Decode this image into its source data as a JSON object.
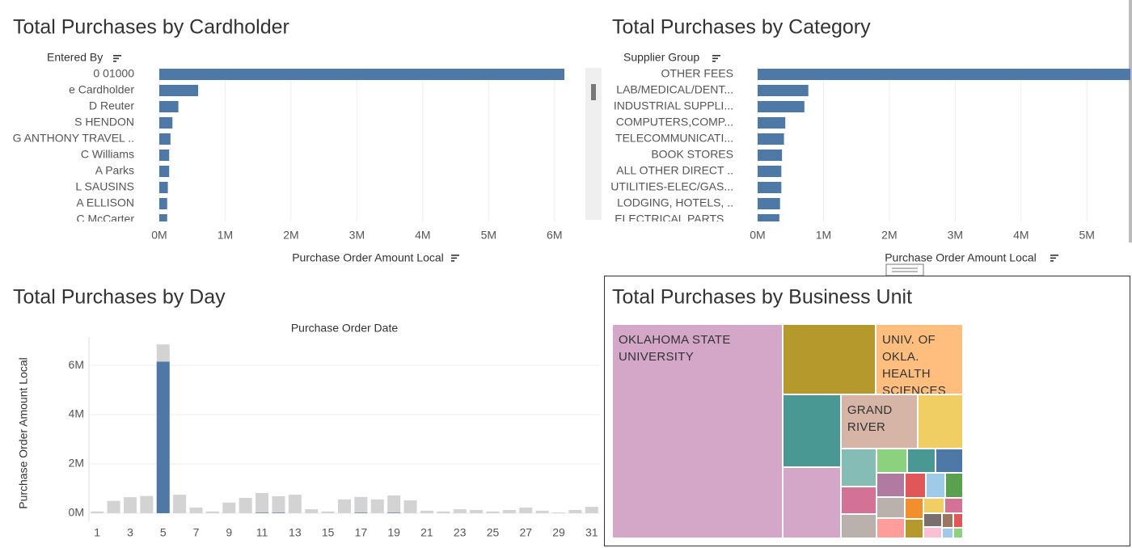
{
  "chart_data": [
    {
      "type": "bar",
      "orientation": "horizontal",
      "title": "Total Purchases by Cardholder",
      "category_header": "Entered By",
      "x_label": "Purchase Order Amount Local",
      "categories": [
        "0 01000",
        "e Cardholder",
        "D Reuter",
        "S HENDON",
        "G ANTHONY TRAVEL ..",
        "C Williams",
        "A Parks",
        "L SAUSINS",
        "A ELLISON",
        "C McCarter"
      ],
      "values": [
        6150000,
        590000,
        290000,
        200000,
        170000,
        150000,
        150000,
        130000,
        120000,
        120000
      ],
      "color": "#4e79a7",
      "xlim": [
        0,
        6420000
      ],
      "xticks": [
        {
          "value": 0,
          "label": "0M"
        },
        {
          "value": 1000000,
          "label": "1M"
        },
        {
          "value": 2000000,
          "label": "2M"
        },
        {
          "value": 3000000,
          "label": "3M"
        },
        {
          "value": 4000000,
          "label": "4M"
        },
        {
          "value": 5000000,
          "label": "5M"
        },
        {
          "value": 6000000,
          "label": "6M"
        }
      ],
      "grid": true
    },
    {
      "type": "bar",
      "orientation": "horizontal",
      "title": "Total Purchases by Category",
      "category_header": "Supplier Group",
      "x_label": "Purchase Order Amount Local",
      "categories": [
        "OTHER FEES",
        "LAB/MEDICAL/DENT...",
        "INDUSTRIAL SUPPLI...",
        "COMPUTERS,COMP...",
        "TELECOMMUNICATI...",
        "BOOK STORES",
        "ALL OTHER DIRECT ..",
        "UTILITIES-ELEC/GAS...",
        "LODGING, HOTELS, ..",
        "ELECTRICAL PARTS..."
      ],
      "values": [
        5660000,
        770000,
        710000,
        420000,
        400000,
        370000,
        360000,
        360000,
        340000,
        330000
      ],
      "color": "#4e79a7",
      "xlim": [
        0,
        5660000
      ],
      "xticks": [
        {
          "value": 0,
          "label": "0M"
        },
        {
          "value": 1000000,
          "label": "1M"
        },
        {
          "value": 2000000,
          "label": "2M"
        },
        {
          "value": 3000000,
          "label": "3M"
        },
        {
          "value": 4000000,
          "label": "4M"
        },
        {
          "value": 5000000,
          "label": "5M"
        }
      ],
      "grid": true
    },
    {
      "type": "bar",
      "orientation": "vertical",
      "title": "Total Purchases by Day",
      "x_header": "Purchase Order Date",
      "y_label": "Purchase Order Amount Local",
      "categories": [
        "1",
        null,
        "3",
        null,
        "5",
        null,
        "7",
        null,
        "9",
        null,
        "11",
        null,
        "13",
        null,
        "15",
        null,
        "17",
        null,
        "19",
        null,
        "21",
        null,
        "23",
        null,
        "25",
        null,
        "27",
        null,
        "29",
        null,
        "31"
      ],
      "series": [
        {
          "color": "#d3d3d3",
          "values": [
            70000,
            500000,
            650000,
            700000,
            6850000,
            750000,
            230000,
            70000,
            430000,
            620000,
            820000,
            690000,
            750000,
            160000,
            70000,
            560000,
            660000,
            560000,
            720000,
            520000,
            100000,
            70000,
            160000,
            130000,
            70000,
            130000,
            230000,
            100000,
            30000,
            130000,
            260000
          ]
        },
        {
          "color": "#4e79a7",
          "values": [
            0,
            0,
            0,
            0,
            6150000,
            0,
            0,
            0,
            0,
            0,
            20000,
            20000,
            0,
            0,
            0,
            0,
            20000,
            0,
            20000,
            0,
            0,
            0,
            0,
            0,
            0,
            0,
            0,
            0,
            0,
            0,
            0
          ]
        }
      ],
      "ylim": [
        -330000,
        7150000
      ],
      "yticks": [
        {
          "value": 0,
          "label": "0M"
        },
        {
          "value": 2000000,
          "label": "2M"
        },
        {
          "value": 4000000,
          "label": "4M"
        },
        {
          "value": 6000000,
          "label": "6M"
        }
      ],
      "grid": true
    },
    {
      "type": "treemap",
      "title": "Total Purchases by Business Unit",
      "labels": [
        "OKLAHOMA STATE UNIVERSITY",
        null,
        "UNIV. OF OKLA. HEALTH SCIENCES",
        null,
        null,
        "GRAND RIVER",
        null,
        null,
        null,
        null,
        null,
        null,
        null,
        null,
        null,
        null,
        null,
        null,
        null,
        null,
        null,
        null,
        null,
        null,
        null,
        null,
        null,
        null,
        null
      ],
      "values": [
        4500000,
        810000,
        760000,
        520000,
        510000,
        510000,
        300000,
        165000,
        121000,
        106000,
        94000,
        86000,
        83000,
        83000,
        75000,
        70000,
        65000,
        60000,
        55000,
        50000,
        45000,
        40000,
        35000,
        30000,
        25000,
        20000,
        18000,
        15000,
        12000
      ],
      "colors": [
        "#d4a6c8",
        "#b6992d",
        "#ffbe7d",
        "#499894",
        "#d4a6c8",
        "#d7b5a6",
        "#f1ce63",
        "#86bcb6",
        "#d37295",
        "#bab0ac",
        "#8cd17d",
        "#499894",
        "#4e79a7",
        "#b07aa1",
        "#bab0ac",
        "#ff9d9a",
        "#e15759",
        "#a0cbe8",
        "#59a14f",
        "#f28e2b",
        "#b6992d",
        "#f1ce63",
        "#d37295",
        "#79706e",
        "#fabfd2",
        "#9d7660",
        "#e15759",
        "#a0cbe8",
        "#8cd17d"
      ]
    }
  ]
}
